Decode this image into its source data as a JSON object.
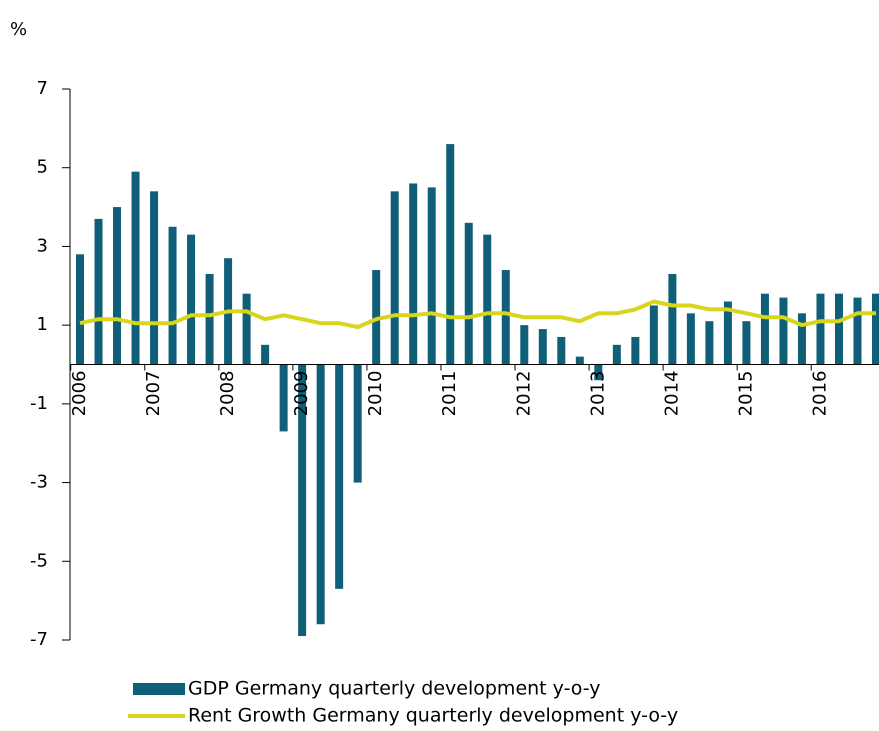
{
  "chart_data": {
    "type": "bar_line",
    "unit_label": "%",
    "categories": [
      "2006",
      null,
      null,
      null,
      "2007",
      null,
      null,
      null,
      "2008",
      null,
      null,
      null,
      "2009",
      null,
      null,
      null,
      "2010",
      null,
      null,
      null,
      "2011",
      null,
      null,
      null,
      "2012",
      null,
      null,
      null,
      "2013",
      null,
      null,
      null,
      "2014",
      null,
      null,
      null,
      "2015",
      null,
      null,
      null,
      "2016",
      null,
      null,
      null
    ],
    "series": [
      {
        "name": "GDP Germany quarterly development y-o-y",
        "type": "bar",
        "color": "#0f5f78",
        "values": [
          2.8,
          3.7,
          4.0,
          4.9,
          4.4,
          3.5,
          3.3,
          2.3,
          2.7,
          1.8,
          0.5,
          -1.7,
          -6.9,
          -6.6,
          -5.7,
          -3.0,
          2.4,
          4.4,
          4.6,
          4.5,
          5.6,
          3.6,
          3.3,
          2.4,
          1.0,
          0.9,
          0.7,
          0.2,
          -0.4,
          0.5,
          0.7,
          1.5,
          2.3,
          1.3,
          1.1,
          1.6,
          1.1,
          1.8,
          1.7,
          1.3,
          1.8,
          1.8,
          1.7,
          1.8
        ]
      },
      {
        "name": "Rent Growth Germany quarterly development y-o-y",
        "type": "line",
        "color": "#d7d51c",
        "values": [
          1.05,
          1.15,
          1.15,
          1.05,
          1.05,
          1.05,
          1.25,
          1.25,
          1.35,
          1.35,
          1.15,
          1.25,
          1.15,
          1.05,
          1.05,
          0.95,
          1.15,
          1.25,
          1.25,
          1.3,
          1.2,
          1.2,
          1.3,
          1.3,
          1.2,
          1.2,
          1.2,
          1.1,
          1.3,
          1.3,
          1.4,
          1.6,
          1.5,
          1.5,
          1.4,
          1.4,
          1.3,
          1.2,
          1.2,
          1.0,
          1.1,
          1.1,
          1.3,
          1.3
        ]
      }
    ],
    "ylim": [
      -7,
      7
    ],
    "yticks": [
      7,
      5,
      3,
      1,
      -1,
      -3,
      -5,
      -7
    ],
    "grid": false,
    "legend": "bottom"
  }
}
